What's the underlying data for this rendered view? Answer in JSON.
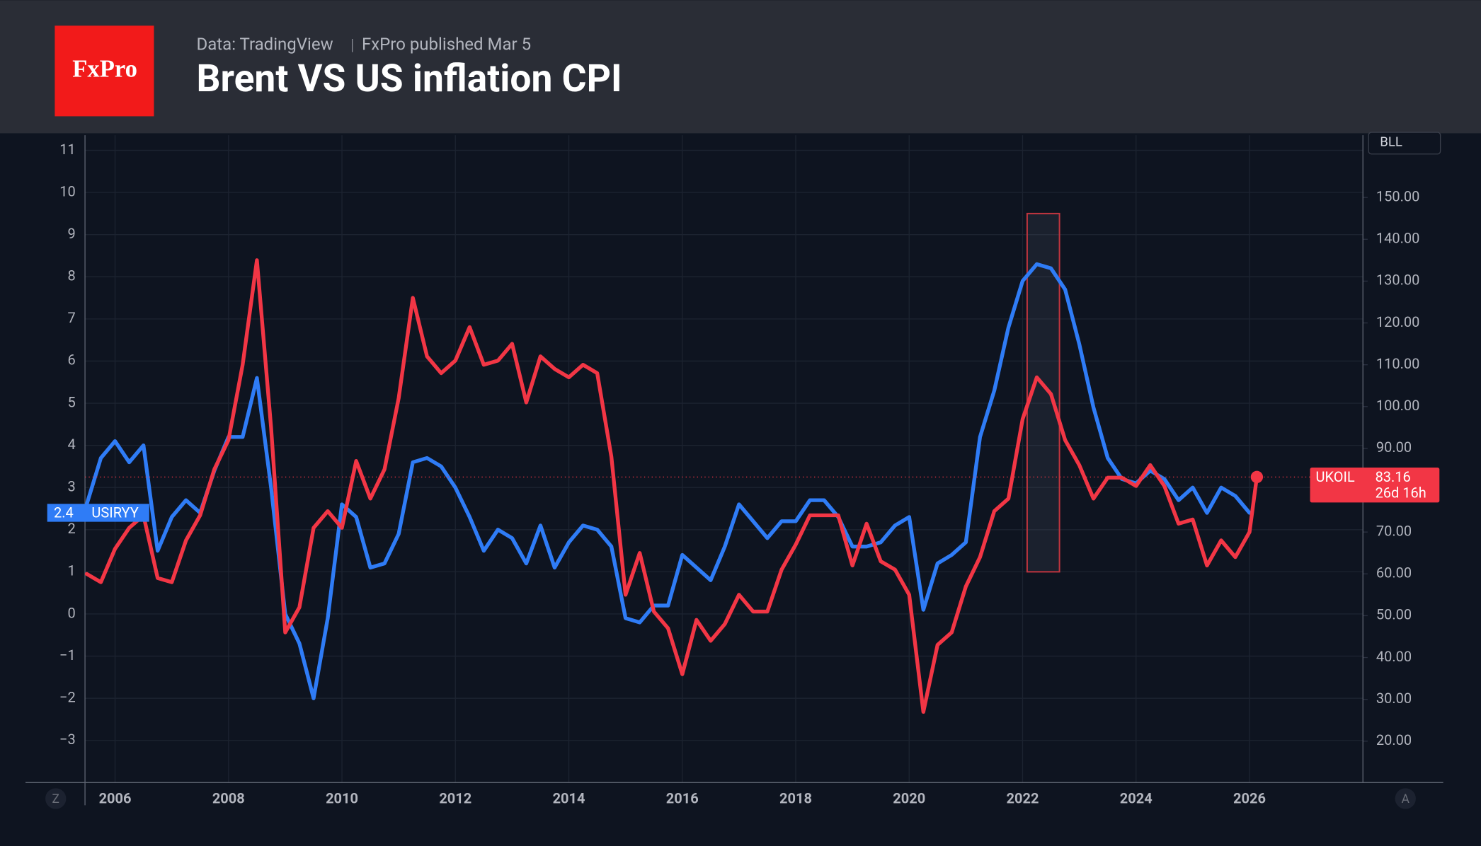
{
  "header": {
    "logo": "FxPro",
    "source": "Data: TradingView",
    "published": "FxPro published Mar 5"
  },
  "controls": {
    "badge": "BLL",
    "left_button": "Z",
    "right_button": "A"
  },
  "chart_data": {
    "type": "line",
    "title": "Brent VS US inflation CPI",
    "x": [
      2005.5,
      2005.75,
      2006,
      2006.25,
      2006.5,
      2006.75,
      2007,
      2007.25,
      2007.5,
      2007.75,
      2008,
      2008.25,
      2008.5,
      2008.75,
      2009,
      2009.25,
      2009.5,
      2009.75,
      2010,
      2010.25,
      2010.5,
      2010.75,
      2011,
      2011.25,
      2011.5,
      2011.75,
      2012,
      2012.25,
      2012.5,
      2012.75,
      2013,
      2013.25,
      2013.5,
      2013.75,
      2014,
      2014.25,
      2014.5,
      2014.75,
      2015,
      2015.25,
      2015.5,
      2015.75,
      2016,
      2016.25,
      2016.5,
      2016.75,
      2017,
      2017.25,
      2017.5,
      2017.75,
      2018,
      2018.25,
      2018.5,
      2018.75,
      2019,
      2019.25,
      2019.5,
      2019.75,
      2020,
      2020.25,
      2020.5,
      2020.75,
      2021,
      2021.25,
      2021.5,
      2021.75,
      2022,
      2022.25,
      2022.5,
      2022.75,
      2023,
      2023.25,
      2023.5,
      2023.75,
      2024,
      2024.25,
      2024.5,
      2024.75,
      2025,
      2025.25,
      2025.5,
      2025.75,
      2026,
      2026.13
    ],
    "series": [
      {
        "name": "USIRYY",
        "color": "#2f7cf6",
        "axis": "y",
        "values": [
          2.6,
          3.7,
          4.1,
          3.6,
          4.0,
          1.5,
          2.3,
          2.7,
          2.4,
          3.4,
          4.2,
          4.2,
          5.6,
          3.0,
          0.0,
          -0.7,
          -2.0,
          -0.1,
          2.6,
          2.3,
          1.1,
          1.2,
          1.9,
          3.6,
          3.7,
          3.5,
          3.0,
          2.3,
          1.5,
          2.0,
          1.8,
          1.2,
          2.1,
          1.1,
          1.7,
          2.1,
          2.0,
          1.6,
          -0.1,
          -0.2,
          0.2,
          0.2,
          1.4,
          1.1,
          0.8,
          1.6,
          2.6,
          2.2,
          1.8,
          2.2,
          2.2,
          2.7,
          2.7,
          2.3,
          1.6,
          1.6,
          1.7,
          2.1,
          2.3,
          0.1,
          1.2,
          1.4,
          1.7,
          4.2,
          5.3,
          6.8,
          7.9,
          8.3,
          8.2,
          7.7,
          6.4,
          4.9,
          3.7,
          3.2,
          3.1,
          3.4,
          3.2,
          2.7,
          3.0,
          2.4,
          3.0,
          2.8,
          2.4,
          null
        ]
      },
      {
        "name": "UKOIL",
        "color": "#f23645",
        "axis": "y2",
        "values": [
          60,
          58,
          66,
          71,
          74,
          59,
          58,
          68,
          74,
          85,
          92,
          110,
          135,
          95,
          46,
          52,
          71,
          75,
          71,
          87,
          78,
          85,
          102,
          126,
          112,
          108,
          111,
          119,
          110,
          111,
          115,
          101,
          112,
          109,
          107,
          110,
          108,
          88,
          55,
          65,
          51,
          47,
          36,
          49,
          44,
          48,
          55,
          51,
          51,
          61,
          67,
          74,
          74,
          74,
          62,
          72,
          63,
          61,
          55,
          27,
          43,
          46,
          57,
          64,
          75,
          78,
          97,
          107,
          103,
          92,
          86,
          78,
          83,
          83,
          81,
          86,
          81,
          72,
          73,
          62,
          68,
          64,
          70,
          83.16
        ]
      }
    ],
    "annotation": "26d 16h",
    "highlight": {
      "xlim": [
        2022.08,
        2022.65
      ],
      "ylim": [
        1.0,
        9.5
      ]
    },
    "xlim": [
      2005.47,
      2028.0
    ],
    "xticks": [
      2006,
      2008,
      2010,
      2012,
      2014,
      2016,
      2018,
      2020,
      2022,
      2024,
      2026
    ],
    "ylim": [
      -4.0,
      11.36
    ],
    "yticks": [
      {
        "value": -3,
        "label": "−3"
      },
      {
        "value": -2,
        "label": "−2"
      },
      {
        "value": -1,
        "label": "−1"
      },
      0,
      1,
      2,
      3,
      4,
      5,
      6,
      7,
      8,
      9,
      10,
      11
    ],
    "y2lim": [
      10.1,
      164.9
    ],
    "y2ticks": [
      {
        "value": 20,
        "label": "20.00"
      },
      {
        "value": 30,
        "label": "30.00"
      },
      {
        "value": 40,
        "label": "40.00"
      },
      {
        "value": 50,
        "label": "50.00"
      },
      {
        "value": 60,
        "label": "60.00"
      },
      {
        "value": 70,
        "label": "70.00"
      },
      {
        "value": 80,
        "label": "80.00"
      },
      {
        "value": 90,
        "label": "90.00"
      },
      {
        "value": 100,
        "label": "100.00"
      },
      {
        "value": 110,
        "label": "110.00"
      },
      {
        "value": 120,
        "label": "120.00"
      },
      {
        "value": 130,
        "label": "130.00"
      },
      {
        "value": 140,
        "label": "140.00"
      },
      {
        "value": 150,
        "label": "150.00"
      }
    ],
    "grid": true
  }
}
